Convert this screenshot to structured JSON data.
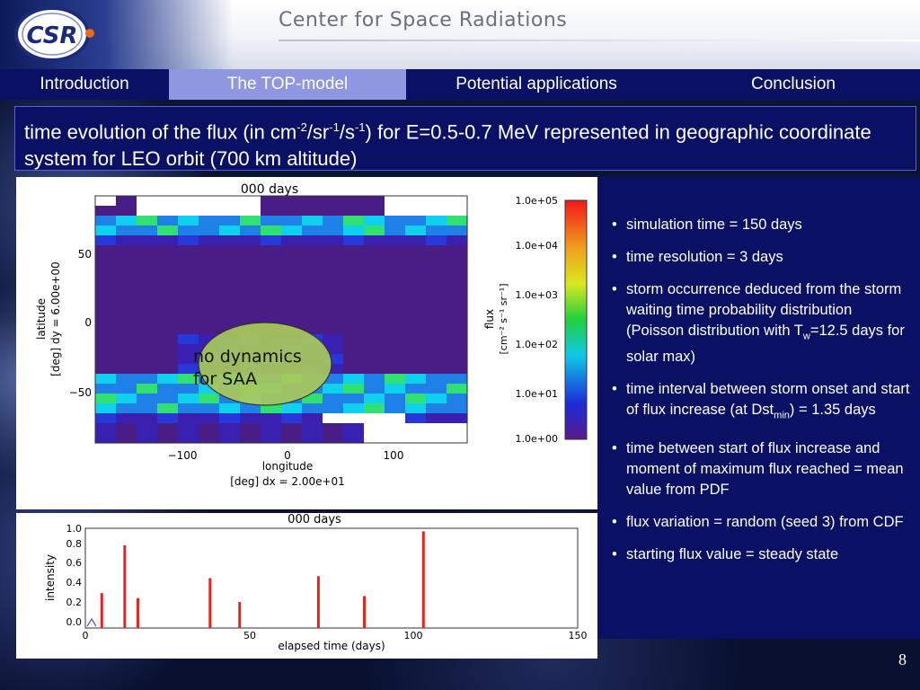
{
  "header": {
    "logo_text": "CSR",
    "site_title": "Center for Space Radiations"
  },
  "nav": {
    "tabs": [
      {
        "label": "Introduction"
      },
      {
        "label": "The TOP-model"
      },
      {
        "label": "Potential applications"
      },
      {
        "label": "Conclusion"
      }
    ],
    "active_index": 1
  },
  "title": {
    "part1": "time evolution of the flux (in cm",
    "sup1": "-2",
    "part2": "/sr",
    "sup2": "-1",
    "part3": "/s",
    "sup3": "-1",
    "part4": ") for E=0.5-0.7 MeV represented in geographic coordinate system for LEO orbit (700 km altitude)"
  },
  "map_plot": {
    "title": "000 days",
    "xlabel": "longitude",
    "xlabel2": "[deg]  dx = 2.00e+01",
    "ylabel": "latitude",
    "ylabel2": "[deg]  dy = 6.00e+00",
    "x_ticks": [
      "−100",
      "0",
      "100"
    ],
    "y_ticks": [
      "50",
      "0",
      "−50"
    ],
    "colorbar_ticks": [
      "1.0e+05",
      "1.0e+04",
      "1.0e+03",
      "1.0e+02",
      "1.0e+01",
      "1.0e+00"
    ],
    "colorbar_label": "flux",
    "colorbar_units": "[cm⁻² s⁻¹ sr⁻¹]",
    "annotation_line1": "no dynamics",
    "annotation_line2": "for SAA"
  },
  "chart_data": {
    "type": "bar",
    "title": "000 days",
    "xlabel": "elapsed time (days)",
    "ylabel": "intensity",
    "xlim": [
      0,
      150
    ],
    "ylim": [
      0,
      1.0
    ],
    "x_ticks": [
      "0",
      "50",
      "100",
      "150"
    ],
    "y_ticks": [
      "0.0",
      "0.2",
      "0.4",
      "0.6",
      "0.8",
      "1.0"
    ],
    "x": [
      5,
      12,
      16,
      38,
      47,
      71,
      85,
      103
    ],
    "values": [
      0.35,
      0.83,
      0.3,
      0.5,
      0.26,
      0.52,
      0.32,
      0.97
    ],
    "bar_color": "#e8231f"
  },
  "bullets": [
    {
      "text": "simulation time = 150 days"
    },
    {
      "text": "time resolution = 3 days"
    },
    {
      "text": "storm occurrence deduced from the storm waiting time  probability distribution (Poisson distribution with T",
      "sub": "w",
      "after": "=12.5 days for solar max)"
    },
    {
      "text": "time interval between storm onset and start of flux increase (at Dst",
      "sub": "min",
      "after": ") = 1.35 days"
    },
    {
      "text": "time between start of flux increase and moment of maximum flux reached = mean value from PDF"
    },
    {
      "text": " flux variation = random (seed 3) from CDF"
    },
    {
      "text": " starting flux value = steady state"
    }
  ],
  "page_number": "8",
  "colors": {
    "navy": "#0a1064",
    "active_tab": "#8f97e0"
  }
}
